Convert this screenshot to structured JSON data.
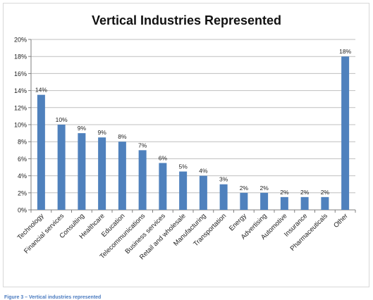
{
  "chart_data": {
    "type": "bar",
    "title": "Vertical Industries Represented",
    "categories": [
      "Technology",
      "Financial services",
      "Consulting",
      "Healthcare",
      "Education",
      "Telecommunications",
      "Business services",
      "Retail and wholesale",
      "Manufacturing",
      "Transportation",
      "Energy",
      "Advertising",
      "Automotive",
      "Insurance",
      "Pharmaceuticals",
      "Other"
    ],
    "values": [
      13.5,
      10,
      9,
      8.5,
      8,
      7,
      5.5,
      4.5,
      4,
      3,
      2,
      2,
      1.5,
      1.5,
      1.5,
      18
    ],
    "data_labels": [
      "14%",
      "10%",
      "9%",
      "9%",
      "8%",
      "7%",
      "6%",
      "5%",
      "4%",
      "3%",
      "2%",
      "2%",
      "2%",
      "2%",
      "2%",
      "18%"
    ],
    "ylim": [
      0,
      20
    ],
    "yticks": [
      0,
      2,
      4,
      6,
      8,
      10,
      12,
      14,
      16,
      18,
      20
    ],
    "ytick_labels": [
      "0%",
      "2%",
      "4%",
      "6%",
      "8%",
      "10%",
      "12%",
      "14%",
      "16%",
      "18%",
      "20%"
    ],
    "xlabel": "",
    "ylabel": "",
    "grid": true,
    "legend": "none",
    "bar_color": "#4f81bd"
  },
  "caption": "Figure 3 – Vertical industries represented"
}
